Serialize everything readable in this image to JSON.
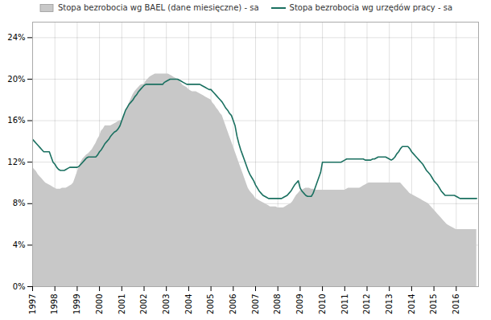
{
  "chart_data": {
    "type": "line",
    "x": [
      1997.0,
      1997.083,
      1997.167,
      1997.25,
      1997.333,
      1997.417,
      1997.5,
      1997.583,
      1997.667,
      1997.75,
      1997.833,
      1997.917,
      1998.0,
      1998.083,
      1998.167,
      1998.25,
      1998.333,
      1998.417,
      1998.5,
      1998.583,
      1998.667,
      1998.75,
      1998.833,
      1998.917,
      1999.0,
      1999.083,
      1999.167,
      1999.25,
      1999.333,
      1999.417,
      1999.5,
      1999.583,
      1999.667,
      1999.75,
      1999.833,
      1999.917,
      2000.0,
      2000.083,
      2000.167,
      2000.25,
      2000.333,
      2000.417,
      2000.5,
      2000.583,
      2000.667,
      2000.75,
      2000.833,
      2000.917,
      2001.0,
      2001.083,
      2001.167,
      2001.25,
      2001.333,
      2001.417,
      2001.5,
      2001.583,
      2001.667,
      2001.75,
      2001.833,
      2001.917,
      2002.0,
      2002.083,
      2002.167,
      2002.25,
      2002.333,
      2002.417,
      2002.5,
      2002.583,
      2002.667,
      2002.75,
      2002.833,
      2002.917,
      2003.0,
      2003.083,
      2003.167,
      2003.25,
      2003.333,
      2003.417,
      2003.5,
      2003.583,
      2003.667,
      2003.75,
      2003.833,
      2003.917,
      2004.0,
      2004.083,
      2004.167,
      2004.25,
      2004.333,
      2004.417,
      2004.5,
      2004.583,
      2004.667,
      2004.75,
      2004.833,
      2004.917,
      2005.0,
      2005.083,
      2005.167,
      2005.25,
      2005.333,
      2005.417,
      2005.5,
      2005.583,
      2005.667,
      2005.75,
      2005.833,
      2005.917,
      2006.0,
      2006.083,
      2006.167,
      2006.25,
      2006.333,
      2006.417,
      2006.5,
      2006.583,
      2006.667,
      2006.75,
      2006.833,
      2006.917,
      2007.0,
      2007.083,
      2007.167,
      2007.25,
      2007.333,
      2007.417,
      2007.5,
      2007.583,
      2007.667,
      2007.75,
      2007.833,
      2007.917,
      2008.0,
      2008.083,
      2008.167,
      2008.25,
      2008.333,
      2008.417,
      2008.5,
      2008.583,
      2008.667,
      2008.75,
      2008.833,
      2008.917,
      2009.0,
      2009.083,
      2009.167,
      2009.25,
      2009.333,
      2009.417,
      2009.5,
      2009.583,
      2009.667,
      2009.75,
      2009.833,
      2009.917,
      2010.0,
      2010.083,
      2010.167,
      2010.25,
      2010.333,
      2010.417,
      2010.5,
      2010.583,
      2010.667,
      2010.75,
      2010.833,
      2010.917,
      2011.0,
      2011.083,
      2011.167,
      2011.25,
      2011.333,
      2011.417,
      2011.5,
      2011.583,
      2011.667,
      2011.75,
      2011.833,
      2011.917,
      2012.0,
      2012.083,
      2012.167,
      2012.25,
      2012.333,
      2012.417,
      2012.5,
      2012.583,
      2012.667,
      2012.75,
      2012.833,
      2012.917,
      2013.0,
      2013.083,
      2013.167,
      2013.25,
      2013.333,
      2013.417,
      2013.5,
      2013.583,
      2013.667,
      2013.75,
      2013.833,
      2013.917,
      2014.0,
      2014.083,
      2014.167,
      2014.25,
      2014.333,
      2014.417,
      2014.5,
      2014.583,
      2014.667,
      2014.75,
      2014.833,
      2014.917,
      2015.0,
      2015.083,
      2015.167,
      2015.25,
      2015.333,
      2015.417,
      2015.5,
      2015.583,
      2015.667,
      2015.75,
      2015.833,
      2015.917,
      2016.0,
      2016.083,
      2016.167,
      2016.25,
      2016.333,
      2016.417,
      2016.5,
      2016.583,
      2016.667,
      2016.75,
      2016.833,
      2016.917
    ],
    "series": [
      {
        "name": "Stopa bezrobocia wg BAEL (dane miesięczne) - sa",
        "type": "area",
        "color": "#c8c8c8",
        "values": [
          11.5,
          11.3,
          11.1,
          10.8,
          10.6,
          10.4,
          10.2,
          10.0,
          9.9,
          9.8,
          9.7,
          9.6,
          9.5,
          9.4,
          9.4,
          9.4,
          9.5,
          9.5,
          9.5,
          9.6,
          9.7,
          9.8,
          10.0,
          10.5,
          11.0,
          11.5,
          12.0,
          12.3,
          12.5,
          12.7,
          12.8,
          13.0,
          13.2,
          13.5,
          13.8,
          14.2,
          14.5,
          15.0,
          15.2,
          15.5,
          15.5,
          15.5,
          15.5,
          15.6,
          15.7,
          15.8,
          15.9,
          16.0,
          16.0,
          16.3,
          16.7,
          17.2,
          17.7,
          18.1,
          18.5,
          18.8,
          19.0,
          19.2,
          19.4,
          19.5,
          19.5,
          19.8,
          20.0,
          20.2,
          20.3,
          20.4,
          20.5,
          20.5,
          20.5,
          20.5,
          20.5,
          20.5,
          20.5,
          20.5,
          20.4,
          20.3,
          20.2,
          20.1,
          20.0,
          19.8,
          19.6,
          19.4,
          19.3,
          19.2,
          19.0,
          18.9,
          18.8,
          18.8,
          18.8,
          18.7,
          18.6,
          18.5,
          18.4,
          18.3,
          18.2,
          18.1,
          18.0,
          17.7,
          17.5,
          17.2,
          17.0,
          16.7,
          16.5,
          16.0,
          15.5,
          15.0,
          14.5,
          14.0,
          13.5,
          13.0,
          12.5,
          12.0,
          11.5,
          11.0,
          10.5,
          10.0,
          9.5,
          9.2,
          9.0,
          8.8,
          8.5,
          8.4,
          8.3,
          8.2,
          8.1,
          8.0,
          7.9,
          7.8,
          7.7,
          7.7,
          7.7,
          7.7,
          7.6,
          7.6,
          7.6,
          7.6,
          7.7,
          7.8,
          7.9,
          8.0,
          8.2,
          8.5,
          8.8,
          9.0,
          9.2,
          9.3,
          9.4,
          9.5,
          9.5,
          9.5,
          9.4,
          9.4,
          9.3,
          9.3,
          9.3,
          9.3,
          9.3,
          9.3,
          9.3,
          9.3,
          9.3,
          9.3,
          9.3,
          9.3,
          9.3,
          9.3,
          9.3,
          9.3,
          9.3,
          9.4,
          9.5,
          9.5,
          9.5,
          9.5,
          9.5,
          9.5,
          9.5,
          9.6,
          9.7,
          9.8,
          9.9,
          10.0,
          10.0,
          10.0,
          10.0,
          10.0,
          10.0,
          10.0,
          10.0,
          10.0,
          10.0,
          10.0,
          10.0,
          10.0,
          10.0,
          10.0,
          10.0,
          10.0,
          10.0,
          9.8,
          9.6,
          9.4,
          9.2,
          9.0,
          8.9,
          8.8,
          8.7,
          8.6,
          8.5,
          8.4,
          8.3,
          8.2,
          8.1,
          8.0,
          7.8,
          7.6,
          7.4,
          7.2,
          7.0,
          6.8,
          6.6,
          6.4,
          6.2,
          6.0,
          5.9,
          5.8,
          5.7,
          5.6,
          5.5,
          5.5,
          5.5,
          5.5,
          5.5,
          5.5,
          5.5,
          5.5,
          5.5,
          5.5,
          5.5,
          5.5
        ]
      },
      {
        "name": "Stopa bezrobocia wg urzędów pracy - sa",
        "type": "line",
        "color": "#1a7060",
        "values": [
          14.2,
          14.0,
          13.8,
          13.6,
          13.4,
          13.2,
          13.0,
          13.0,
          13.0,
          13.0,
          12.5,
          12.0,
          11.8,
          11.5,
          11.3,
          11.2,
          11.2,
          11.2,
          11.3,
          11.4,
          11.5,
          11.5,
          11.5,
          11.5,
          11.5,
          11.6,
          11.8,
          12.0,
          12.2,
          12.4,
          12.5,
          12.5,
          12.5,
          12.5,
          12.5,
          12.7,
          13.0,
          13.2,
          13.5,
          13.8,
          14.0,
          14.2,
          14.5,
          14.7,
          14.9,
          15.0,
          15.2,
          15.5,
          16.0,
          16.5,
          17.0,
          17.3,
          17.6,
          17.8,
          18.0,
          18.3,
          18.5,
          18.8,
          19.0,
          19.2,
          19.4,
          19.5,
          19.5,
          19.5,
          19.5,
          19.5,
          19.5,
          19.5,
          19.5,
          19.5,
          19.5,
          19.7,
          19.8,
          19.9,
          20.0,
          20.0,
          20.0,
          20.0,
          20.0,
          19.9,
          19.8,
          19.7,
          19.6,
          19.5,
          19.5,
          19.5,
          19.5,
          19.5,
          19.5,
          19.5,
          19.5,
          19.4,
          19.3,
          19.2,
          19.1,
          19.0,
          19.0,
          18.8,
          18.6,
          18.4,
          18.2,
          18.0,
          17.8,
          17.5,
          17.2,
          17.0,
          16.7,
          16.5,
          16.0,
          15.5,
          14.5,
          13.8,
          13.2,
          12.7,
          12.2,
          11.7,
          11.2,
          10.8,
          10.5,
          10.2,
          9.8,
          9.5,
          9.2,
          9.0,
          8.8,
          8.7,
          8.6,
          8.5,
          8.5,
          8.5,
          8.5,
          8.5,
          8.5,
          8.5,
          8.5,
          8.6,
          8.7,
          8.8,
          9.0,
          9.2,
          9.5,
          9.8,
          10.0,
          10.2,
          9.5,
          9.2,
          9.0,
          8.8,
          8.7,
          8.7,
          8.7,
          9.0,
          9.5,
          10.0,
          10.5,
          11.0,
          12.0,
          12.0,
          12.0,
          12.0,
          12.0,
          12.0,
          12.0,
          12.0,
          12.0,
          12.0,
          12.0,
          12.1,
          12.2,
          12.3,
          12.3,
          12.3,
          12.3,
          12.3,
          12.3,
          12.3,
          12.3,
          12.3,
          12.3,
          12.2,
          12.2,
          12.2,
          12.2,
          12.3,
          12.3,
          12.4,
          12.5,
          12.5,
          12.5,
          12.5,
          12.5,
          12.4,
          12.3,
          12.2,
          12.3,
          12.5,
          12.8,
          13.0,
          13.3,
          13.5,
          13.5,
          13.5,
          13.5,
          13.3,
          13.0,
          12.8,
          12.6,
          12.4,
          12.2,
          12.0,
          11.8,
          11.5,
          11.2,
          11.0,
          10.8,
          10.5,
          10.2,
          10.0,
          9.8,
          9.5,
          9.2,
          9.0,
          8.8,
          8.8,
          8.8,
          8.8,
          8.8,
          8.8,
          8.7,
          8.6,
          8.5,
          8.5,
          8.5,
          8.5,
          8.5,
          8.5,
          8.5,
          8.5,
          8.5,
          8.5
        ]
      }
    ],
    "xlim": [
      1997.0,
      2017.0
    ],
    "xticks": [
      1997,
      1998,
      1999,
      2000,
      2001,
      2002,
      2003,
      2004,
      2005,
      2006,
      2007,
      2008,
      2009,
      2010,
      2011,
      2012,
      2013,
      2014,
      2015,
      2016
    ],
    "ylim": [
      0,
      25.5
    ],
    "yticks": [
      {
        "value": 0,
        "label": "0%"
      },
      {
        "value": 4,
        "label": "4%"
      },
      {
        "value": 8,
        "label": "8%"
      },
      {
        "value": 12,
        "label": "12%"
      },
      {
        "value": 16,
        "label": "16%"
      },
      {
        "value": 20,
        "label": "20%"
      },
      {
        "value": 24,
        "label": "24%"
      }
    ],
    "grid": true,
    "legend": "upper center"
  }
}
